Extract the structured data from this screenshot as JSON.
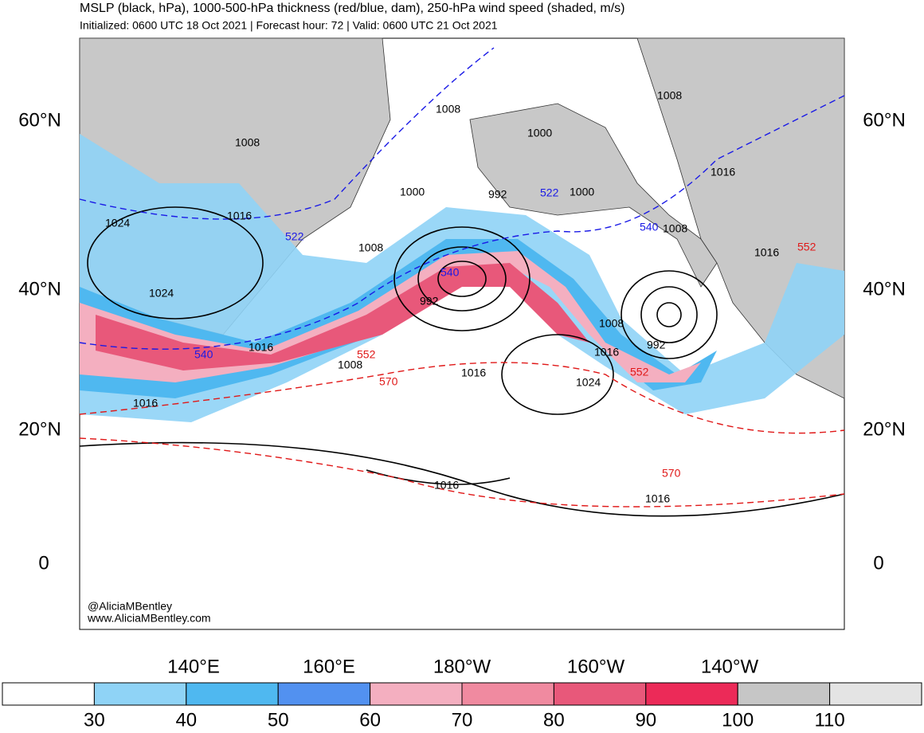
{
  "header": {
    "title": "MSLP (black, hPa), 1000-500-hPa thickness (red/blue, dam), 250-hPa wind speed (shaded, m/s)",
    "subtitle": "Initialized: 0600 UTC 18 Oct 2021 | Forecast hour: 72 | Valid: 0600 UTC 21 Oct 2021"
  },
  "map": {
    "lat_labels": [
      "60°N",
      "40°N",
      "20°N",
      "0"
    ],
    "lon_labels": [
      "140°E",
      "160°E",
      "180°W",
      "160°W",
      "140°W"
    ],
    "contour_labels": [
      "1008",
      "1016",
      "1024",
      "1024",
      "1016",
      "1008",
      "1016",
      "1008",
      "1000",
      "992",
      "1000",
      "1008",
      "522",
      "1000",
      "540",
      "1008",
      "1008",
      "1016",
      "1016",
      "552",
      "522",
      "540",
      "992",
      "540",
      "552",
      "570",
      "1016",
      "1024",
      "1016",
      "1008",
      "992",
      "552",
      "1016",
      "1016",
      "570"
    ],
    "credit": [
      "@AliciaMBentley",
      "www.AliciaMBentley.com"
    ]
  },
  "colorbar": {
    "ticks": [
      30,
      40,
      50,
      60,
      70,
      80,
      90,
      100,
      110
    ],
    "colors": [
      "#ffffff",
      "#8fd3f6",
      "#4fb8f0",
      "#5291f0",
      "#f4afc0",
      "#f08aa0",
      "#e8587a",
      "#ec2a58",
      "#c6c6c6",
      "#e4e4e4"
    ]
  }
}
